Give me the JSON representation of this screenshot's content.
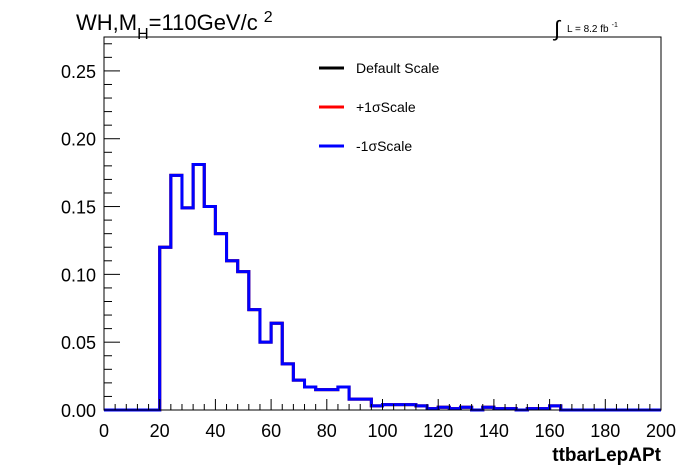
{
  "chart_data": {
    "type": "line",
    "title": {
      "main": "WH,M",
      "subscript": "H",
      "rest": "=110GeV/c",
      "superscript": "2"
    },
    "lumi": {
      "integral_sign": "∫",
      "text": "L = 8.2 fb",
      "exponent": "-1"
    },
    "xlabel": "ttbarLepAPt",
    "ylabel": "",
    "xlim": [
      0,
      200
    ],
    "ylim": [
      0,
      0.275
    ],
    "xticks": [
      0,
      20,
      40,
      60,
      80,
      100,
      120,
      140,
      160,
      180,
      200
    ],
    "yticks": [
      "0.00",
      "0.05",
      "0.10",
      "0.15",
      "0.20",
      "0.25"
    ],
    "legend_position": "top-center",
    "bin_edges": [
      0,
      4,
      8,
      12,
      16,
      20,
      24,
      28,
      32,
      36,
      40,
      44,
      48,
      52,
      56,
      60,
      64,
      68,
      72,
      76,
      80,
      84,
      88,
      92,
      96,
      100,
      104,
      108,
      112,
      116,
      120,
      124,
      128,
      132,
      136,
      140,
      144,
      148,
      152,
      156,
      160,
      164,
      168,
      172,
      176,
      180,
      184,
      188,
      192,
      196,
      200
    ],
    "series": [
      {
        "name": "Default Scale",
        "color": "#000000",
        "values": [
          0,
          0,
          0,
          0,
          0,
          0.12,
          0.173,
          0.149,
          0.181,
          0.15,
          0.13,
          0.11,
          0.102,
          0.074,
          0.05,
          0.064,
          0.034,
          0.022,
          0.017,
          0.015,
          0.015,
          0.017,
          0.008,
          0.008,
          0.003,
          0.004,
          0.004,
          0.004,
          0.003,
          0.001,
          0.002,
          0.001,
          0.002,
          0,
          0.002,
          0.001,
          0.001,
          0,
          0.001,
          0.001,
          0.003,
          0,
          0,
          0,
          0,
          0,
          0,
          0,
          0,
          0
        ]
      },
      {
        "name": "+1σScale",
        "color": "#ff0000",
        "values": [
          0,
          0,
          0,
          0,
          0,
          0.12,
          0.173,
          0.149,
          0.181,
          0.15,
          0.13,
          0.11,
          0.102,
          0.074,
          0.05,
          0.064,
          0.034,
          0.022,
          0.017,
          0.015,
          0.015,
          0.017,
          0.008,
          0.008,
          0.003,
          0.004,
          0.004,
          0.004,
          0.003,
          0.001,
          0.002,
          0.001,
          0.002,
          0,
          0.002,
          0.001,
          0.001,
          0,
          0.001,
          0.001,
          0.003,
          0,
          0,
          0,
          0,
          0,
          0,
          0,
          0,
          0
        ]
      },
      {
        "name": "-1σScale",
        "color": "#0000ff",
        "values": [
          0,
          0,
          0,
          0,
          0,
          0.12,
          0.173,
          0.149,
          0.181,
          0.15,
          0.13,
          0.11,
          0.102,
          0.074,
          0.05,
          0.064,
          0.034,
          0.022,
          0.017,
          0.015,
          0.015,
          0.017,
          0.008,
          0.008,
          0.003,
          0.004,
          0.004,
          0.004,
          0.003,
          0.001,
          0.002,
          0.001,
          0.002,
          0,
          0.002,
          0.001,
          0.001,
          0,
          0.001,
          0.001,
          0.003,
          0,
          0,
          0,
          0,
          0,
          0,
          0,
          0,
          0
        ]
      }
    ]
  }
}
